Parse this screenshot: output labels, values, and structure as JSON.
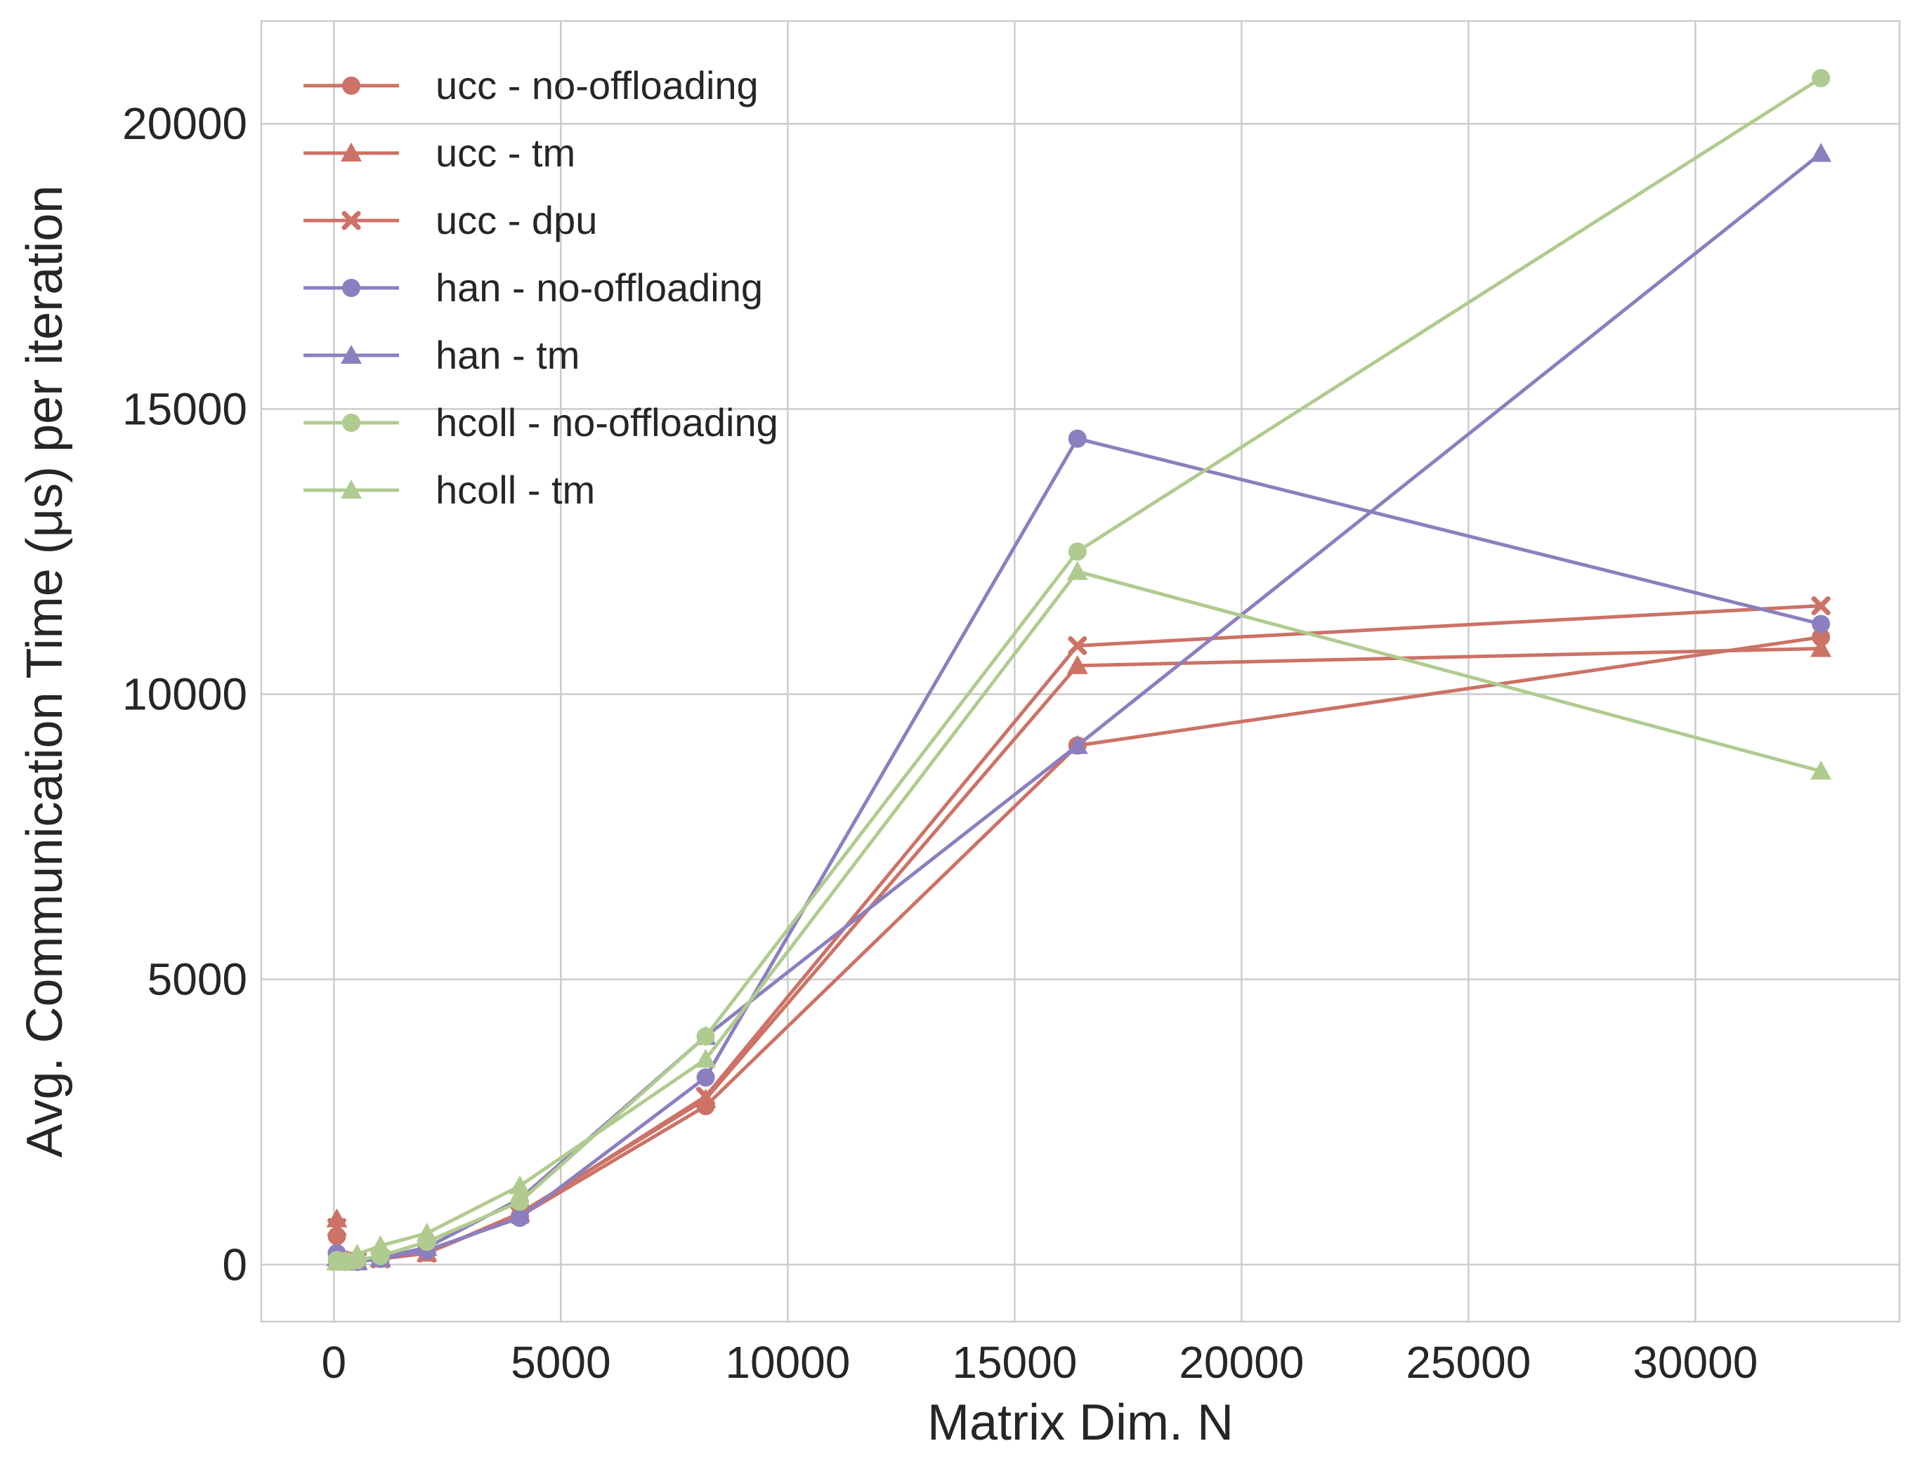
{
  "chart_data": {
    "type": "line",
    "xlabel": "Matrix Dim. N",
    "ylabel": "Avg. Communication Time (μs) per iteration",
    "xlim": [
      -1600,
      34500
    ],
    "ylim": [
      -1000,
      21800
    ],
    "xticks": [
      0,
      5000,
      10000,
      15000,
      20000,
      25000,
      30000
    ],
    "yticks": [
      0,
      5000,
      10000,
      15000,
      20000
    ],
    "grid": true,
    "legend_position": "top-left",
    "series": [
      {
        "name": "ucc - no-offloading",
        "color": "#cc7266",
        "marker": "circle",
        "x": [
          64,
          128,
          256,
          512,
          1024,
          2048,
          4096,
          8192,
          16384,
          32768
        ],
        "y": [
          500,
          80,
          60,
          60,
          100,
          220,
          850,
          2780,
          9100,
          11000
        ]
      },
      {
        "name": "ucc - tm",
        "color": "#cc7266",
        "marker": "triangle",
        "x": [
          64,
          128,
          256,
          512,
          1024,
          2048,
          4096,
          8192,
          16384,
          32768
        ],
        "y": [
          800,
          80,
          60,
          60,
          100,
          200,
          900,
          2900,
          10500,
          10800
        ]
      },
      {
        "name": "ucc - dpu",
        "color": "#cc7266",
        "marker": "x",
        "x": [
          64,
          128,
          256,
          512,
          1024,
          2048,
          4096,
          8192,
          16384,
          32768
        ],
        "y": [
          650,
          80,
          60,
          60,
          100,
          200,
          880,
          2950,
          10850,
          11550
        ]
      },
      {
        "name": "han - no-offloading",
        "color": "#8b7fc0",
        "marker": "circle",
        "x": [
          64,
          128,
          256,
          512,
          1024,
          2048,
          4096,
          8192,
          16384,
          32768
        ],
        "y": [
          200,
          60,
          50,
          50,
          100,
          250,
          820,
          3280,
          14480,
          11230
        ]
      },
      {
        "name": "han - tm",
        "color": "#8b7fc0",
        "marker": "triangle",
        "x": [
          64,
          128,
          256,
          512,
          1024,
          2048,
          4096,
          8192,
          16384,
          32768
        ],
        "y": [
          120,
          50,
          50,
          50,
          120,
          300,
          1150,
          4000,
          9100,
          19480
        ]
      },
      {
        "name": "hcoll - no-offloading",
        "color": "#b0cb8f",
        "marker": "circle",
        "x": [
          64,
          128,
          256,
          512,
          1024,
          2048,
          4096,
          8192,
          16384,
          32768
        ],
        "y": [
          80,
          60,
          60,
          80,
          150,
          400,
          1100,
          4000,
          12500,
          20800
        ]
      },
      {
        "name": "hcoll - tm",
        "color": "#b0cb8f",
        "marker": "triangle",
        "x": [
          64,
          128,
          256,
          512,
          1024,
          2048,
          4096,
          8192,
          16384,
          32768
        ],
        "y": [
          50,
          40,
          60,
          180,
          330,
          550,
          1380,
          3600,
          12150,
          8650
        ]
      }
    ]
  }
}
